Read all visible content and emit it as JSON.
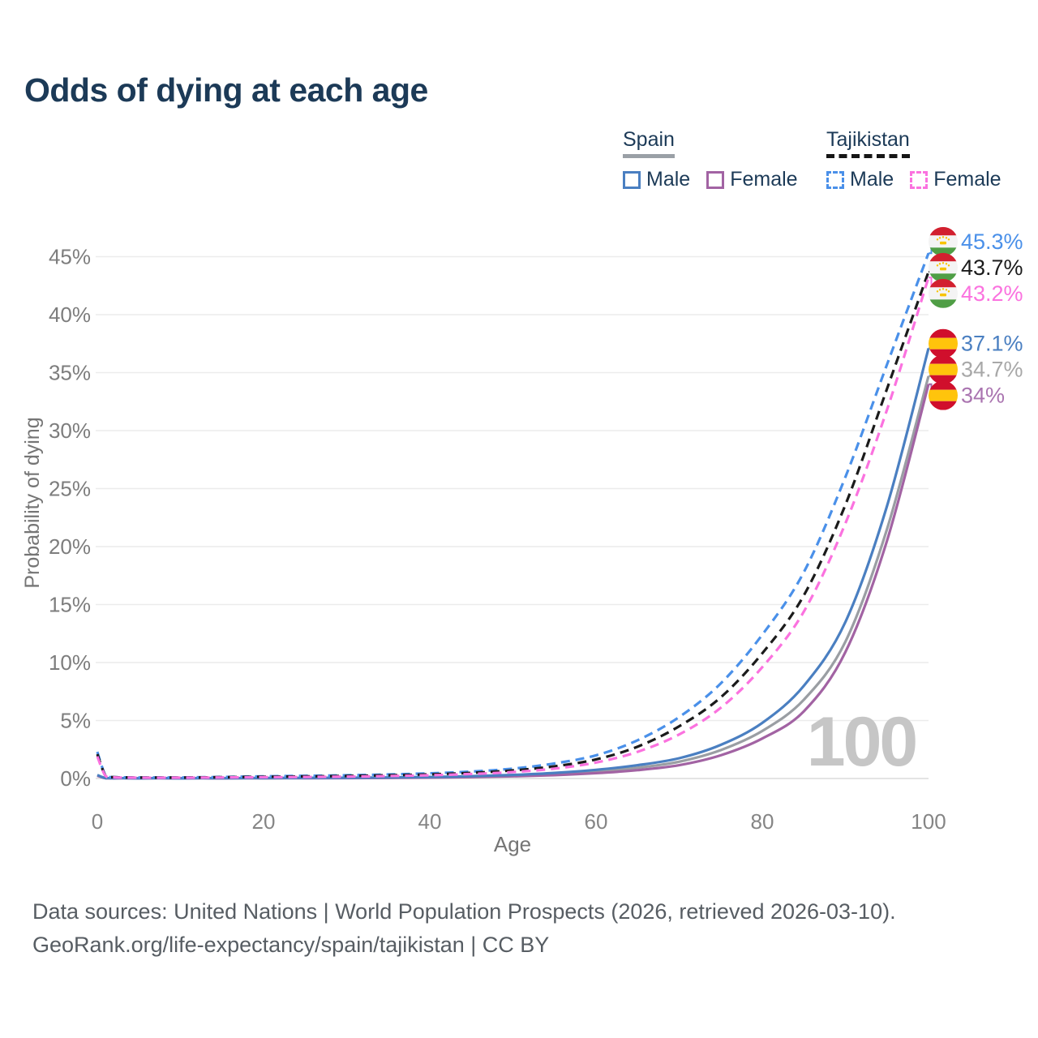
{
  "title": "Odds of dying at each age",
  "legend": {
    "spain": {
      "label": "Spain",
      "underline_style": "solid",
      "underline_color": "#9aa0a6",
      "items": [
        {
          "label": "Male",
          "series": "spain-male"
        },
        {
          "label": "Female",
          "series": "spain-female"
        }
      ]
    },
    "tajikistan": {
      "label": "Tajikistan",
      "underline_style": "dashed",
      "underline_color": "#161616",
      "items": [
        {
          "label": "Male",
          "series": "tajikistan-male"
        },
        {
          "label": "Female",
          "series": "tajikistan-female"
        }
      ]
    }
  },
  "chart_data": {
    "type": "line",
    "title": "Odds of dying at each age",
    "xlabel": "Age",
    "ylabel": "Probability of dying",
    "xlim": [
      0,
      100
    ],
    "ylim_percent": [
      0,
      46.5
    ],
    "x_ticks": [
      0,
      20,
      40,
      60,
      80,
      100
    ],
    "y_ticks": [
      "0%",
      "5%",
      "10%",
      "15%",
      "20%",
      "25%",
      "30%",
      "35%",
      "40%",
      "45%"
    ],
    "grid": "horizontal-only",
    "legend_position": "top-right",
    "age_counter": "100",
    "ages": [
      0,
      1,
      2,
      5,
      10,
      15,
      20,
      25,
      30,
      35,
      40,
      45,
      50,
      55,
      60,
      65,
      70,
      75,
      80,
      85,
      90,
      95,
      100
    ],
    "series": [
      {
        "id": "spain-total",
        "country": "Spain",
        "sex": "Both",
        "color": "#9a9ea3",
        "label_color": "#a8a8a8",
        "dash": false,
        "flag": "spain",
        "end_label": "34.7%",
        "values": [
          0.27,
          0.025,
          0.015,
          0.01,
          0.01,
          0.017,
          0.03,
          0.04,
          0.05,
          0.07,
          0.1,
          0.16,
          0.25,
          0.38,
          0.6,
          0.93,
          1.45,
          2.45,
          4.1,
          6.8,
          11.8,
          21.5,
          34.7
        ]
      },
      {
        "id": "spain-female",
        "country": "Spain",
        "sex": "Female",
        "color": "#a263a3",
        "label_color": "#aa74b0",
        "dash": false,
        "flag": "spain",
        "end_label": "34%",
        "values": [
          0.24,
          0.02,
          0.012,
          0.008,
          0.008,
          0.013,
          0.022,
          0.027,
          0.035,
          0.05,
          0.075,
          0.12,
          0.19,
          0.29,
          0.46,
          0.72,
          1.15,
          2.0,
          3.45,
          5.8,
          10.9,
          20.5,
          34.0
        ]
      },
      {
        "id": "spain-male",
        "country": "Spain",
        "sex": "Male",
        "color": "#4a7fc1",
        "label_color": "#4a7fc1",
        "dash": false,
        "flag": "spain",
        "end_label": "37.1%",
        "values": [
          0.3,
          0.03,
          0.02,
          0.01,
          0.01,
          0.02,
          0.04,
          0.05,
          0.06,
          0.09,
          0.13,
          0.2,
          0.31,
          0.48,
          0.75,
          1.15,
          1.75,
          2.9,
          4.8,
          8.0,
          13.5,
          23.5,
          37.1
        ]
      },
      {
        "id": "tajikistan-male",
        "country": "Tajikistan",
        "sex": "Male",
        "color": "#4a90e9",
        "label_color": "#4a90e9",
        "dash": true,
        "flag": "tajikistan",
        "end_label": "45.3%",
        "values": [
          2.3,
          0.25,
          0.12,
          0.09,
          0.09,
          0.13,
          0.19,
          0.23,
          0.28,
          0.35,
          0.45,
          0.6,
          0.85,
          1.3,
          2.0,
          3.3,
          5.3,
          8.2,
          12.4,
          17.8,
          26.0,
          35.7,
          45.3
        ]
      },
      {
        "id": "tajikistan-total",
        "country": "Tajikistan",
        "sex": "Both",
        "color": "#1b1b1b",
        "label_color": "#1b1b1b",
        "dash": true,
        "flag": "tajikistan",
        "end_label": "43.7%",
        "values": [
          2.1,
          0.22,
          0.11,
          0.08,
          0.08,
          0.11,
          0.15,
          0.18,
          0.22,
          0.28,
          0.36,
          0.49,
          0.7,
          1.05,
          1.65,
          2.75,
          4.5,
          7.0,
          10.8,
          15.8,
          23.6,
          33.6,
          43.7
        ]
      },
      {
        "id": "tajikistan-female",
        "country": "Tajikistan",
        "sex": "Female",
        "color": "#fb72df",
        "label_color": "#fb72df",
        "dash": true,
        "flag": "tajikistan",
        "end_label": "43.2%",
        "values": [
          1.9,
          0.2,
          0.1,
          0.07,
          0.07,
          0.09,
          0.11,
          0.13,
          0.16,
          0.21,
          0.28,
          0.39,
          0.56,
          0.85,
          1.38,
          2.3,
          3.8,
          6.1,
          9.6,
          14.4,
          22.0,
          31.8,
          43.2
        ]
      }
    ],
    "flag_colors": {
      "spain": {
        "red": "#d00f2c",
        "yellow": "#ffc40c"
      },
      "tajikistan": {
        "red": "#d2202f",
        "white": "#f4f4f4",
        "green": "#4f9e45",
        "gold": "#f8c300"
      }
    }
  },
  "footer": {
    "line1": "Data sources: United Nations | World Population Prospects (2026, retrieved 2026-03-10).",
    "line2": "GeoRank.org/life-expectancy/spain/tajikistan | CC BY"
  }
}
